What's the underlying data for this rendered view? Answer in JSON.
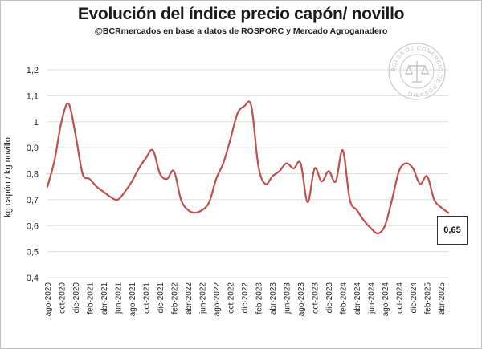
{
  "header": {
    "title": "Evolución del índice precio capón/ novillo",
    "subtitle": "@BCRmercados en base a datos de ROSPORC y Mercado Agroganadero"
  },
  "watermark": {
    "seal_text": "BOLSA DE COMERCIO DE ROSARIO"
  },
  "callout": {
    "value": "0,65"
  },
  "chart_data": {
    "type": "line",
    "title": "Evolución del índice precio capón/ novillo",
    "subtitle": "@BCRmercados en base a datos de ROSPORC y Mercado Agroganadero",
    "xlabel": "",
    "ylabel": "kg capón / kg novillo",
    "ylim": [
      0.4,
      1.2
    ],
    "yticks": [
      "0,4",
      "0,5",
      "0,6",
      "0,7",
      "0,8",
      "0,9",
      "1",
      "1,1",
      "1,2"
    ],
    "grid": true,
    "line_color": "#c0504d",
    "x_tick_labels": [
      "ago-2020",
      "oct-2020",
      "dic-2020",
      "feb-2021",
      "abr-2021",
      "jun-2021",
      "ago-2021",
      "oct-2021",
      "dic-2021",
      "feb-2022",
      "abr-2022",
      "jun-2022",
      "ago-2022",
      "oct-2022",
      "dic-2022",
      "feb-2023",
      "abr-2023",
      "jun-2023",
      "ago-2023",
      "oct-2023",
      "dic-2023",
      "feb-2024",
      "abr-2024",
      "jun-2024",
      "ago-2024",
      "oct-2024",
      "dic-2024",
      "feb-2025",
      "abr-2025"
    ],
    "x": [
      "ago-2020",
      "sep-2020",
      "oct-2020",
      "nov-2020",
      "dic-2020",
      "ene-2021",
      "feb-2021",
      "mar-2021",
      "abr-2021",
      "may-2021",
      "jun-2021",
      "jul-2021",
      "ago-2021",
      "sep-2021",
      "oct-2021",
      "nov-2021",
      "dic-2021",
      "ene-2022",
      "feb-2022",
      "mar-2022",
      "abr-2022",
      "may-2022",
      "jun-2022",
      "jul-2022",
      "ago-2022",
      "sep-2022",
      "oct-2022",
      "nov-2022",
      "dic-2022",
      "ene-2023",
      "feb-2023",
      "mar-2023",
      "abr-2023",
      "may-2023",
      "jun-2023",
      "jul-2023",
      "ago-2023",
      "sep-2023",
      "oct-2023",
      "nov-2023",
      "dic-2023",
      "ene-2024",
      "feb-2024",
      "mar-2024",
      "abr-2024",
      "may-2024",
      "jun-2024",
      "jul-2024",
      "ago-2024",
      "sep-2024",
      "oct-2024",
      "nov-2024",
      "dic-2024",
      "ene-2025",
      "feb-2025",
      "mar-2025",
      "abr-2025",
      "may-2025"
    ],
    "values": [
      0.75,
      0.85,
      1.0,
      1.07,
      0.95,
      0.8,
      0.78,
      0.75,
      0.73,
      0.71,
      0.7,
      0.73,
      0.77,
      0.82,
      0.86,
      0.89,
      0.8,
      0.78,
      0.81,
      0.7,
      0.66,
      0.65,
      0.66,
      0.69,
      0.78,
      0.84,
      0.93,
      1.03,
      1.06,
      1.06,
      0.83,
      0.76,
      0.79,
      0.81,
      0.84,
      0.82,
      0.84,
      0.69,
      0.82,
      0.77,
      0.81,
      0.77,
      0.89,
      0.7,
      0.66,
      0.62,
      0.59,
      0.57,
      0.6,
      0.7,
      0.81,
      0.84,
      0.82,
      0.76,
      0.79,
      0.7,
      0.67,
      0.65
    ]
  }
}
